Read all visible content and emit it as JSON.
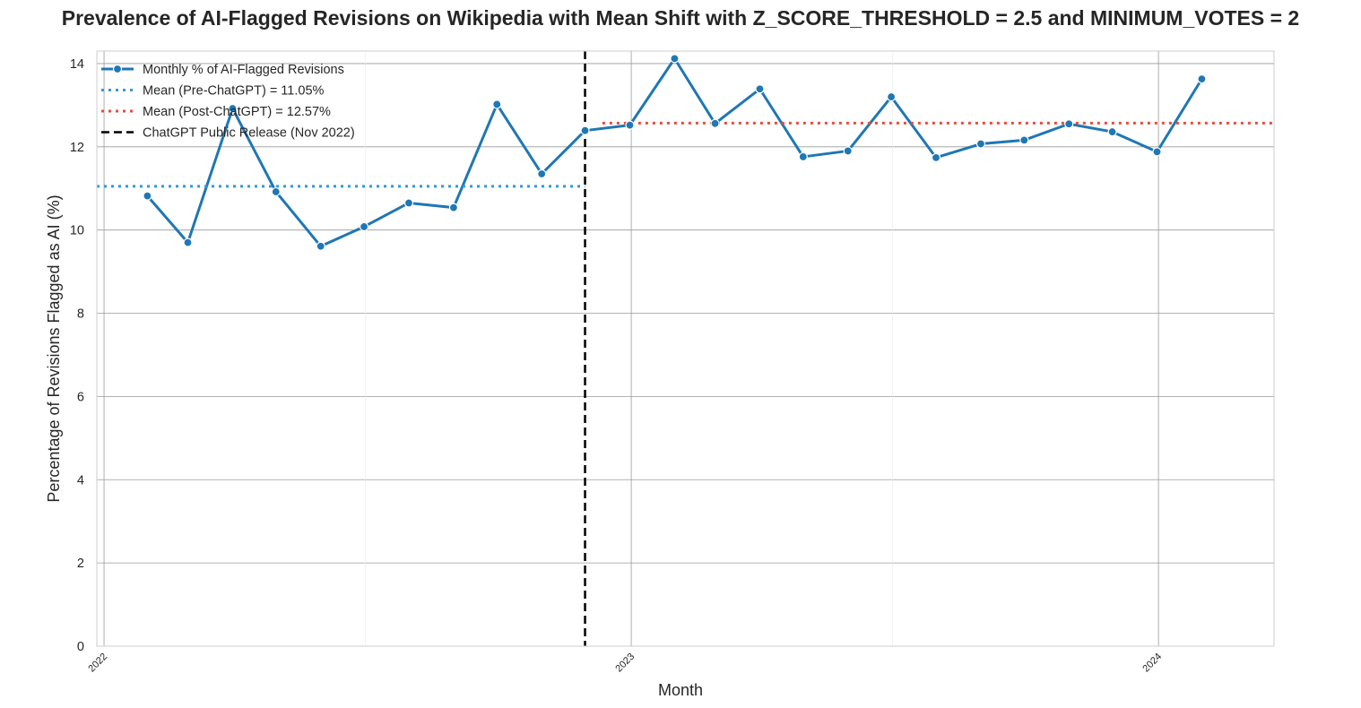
{
  "chart_data": {
    "type": "line",
    "title": "Prevalence of AI-Flagged Revisions on Wikipedia with Mean Shift with Z_SCORE_THRESHOLD = 2.5 and MINIMUM_VOTES = 2",
    "xlabel": "Month",
    "ylabel": "Percentage of Revisions Flagged as AI (%)",
    "ylim": [
      0,
      14.3
    ],
    "yticks": [
      0,
      2,
      4,
      6,
      8,
      10,
      12,
      14
    ],
    "xlim": [
      "2021-12-27",
      "2024-03-21"
    ],
    "xticks": [
      {
        "date": "2022-01-01",
        "label": "2022"
      },
      {
        "date": "2023-01-01",
        "label": "2023"
      },
      {
        "date": "2024-01-01",
        "label": "2024"
      }
    ],
    "grid": true,
    "legend_position": "top-left",
    "series": [
      {
        "name": "Monthly % of AI-Flagged Revisions",
        "color": "#1f77b4",
        "style": "solid-markers",
        "x": [
          "2022-01-31",
          "2022-02-28",
          "2022-03-31",
          "2022-04-30",
          "2022-05-31",
          "2022-06-30",
          "2022-07-31",
          "2022-08-31",
          "2022-09-30",
          "2022-10-31",
          "2022-11-30",
          "2022-12-31",
          "2023-01-31",
          "2023-02-28",
          "2023-03-31",
          "2023-04-30",
          "2023-05-31",
          "2023-06-30",
          "2023-07-31",
          "2023-08-31",
          "2023-09-30",
          "2023-10-31",
          "2023-11-30",
          "2023-12-31",
          "2024-01-31"
        ],
        "y": [
          10.82,
          9.7,
          12.92,
          10.92,
          9.61,
          10.08,
          10.65,
          10.54,
          13.02,
          11.35,
          12.39,
          12.52,
          14.12,
          12.56,
          13.39,
          11.76,
          11.9,
          13.2,
          11.74,
          12.07,
          12.16,
          12.55,
          12.36,
          11.88,
          13.63
        ]
      },
      {
        "name": "Mean (Pre-ChatGPT) = 11.05%",
        "color": "#3498db",
        "style": "dotted",
        "x": [
          "2021-12-27",
          "2022-11-30"
        ],
        "y": [
          11.05,
          11.05
        ]
      },
      {
        "name": "Mean (Post-ChatGPT) = 12.57%",
        "color": "#e74c3c",
        "style": "dotted",
        "x": [
          "2022-12-12",
          "2024-03-21"
        ],
        "y": [
          12.57,
          12.57
        ]
      }
    ],
    "vline": {
      "name": "ChatGPT Public Release (Nov 2022)",
      "date": "2022-11-30",
      "color": "#000000",
      "style": "dashed"
    }
  }
}
